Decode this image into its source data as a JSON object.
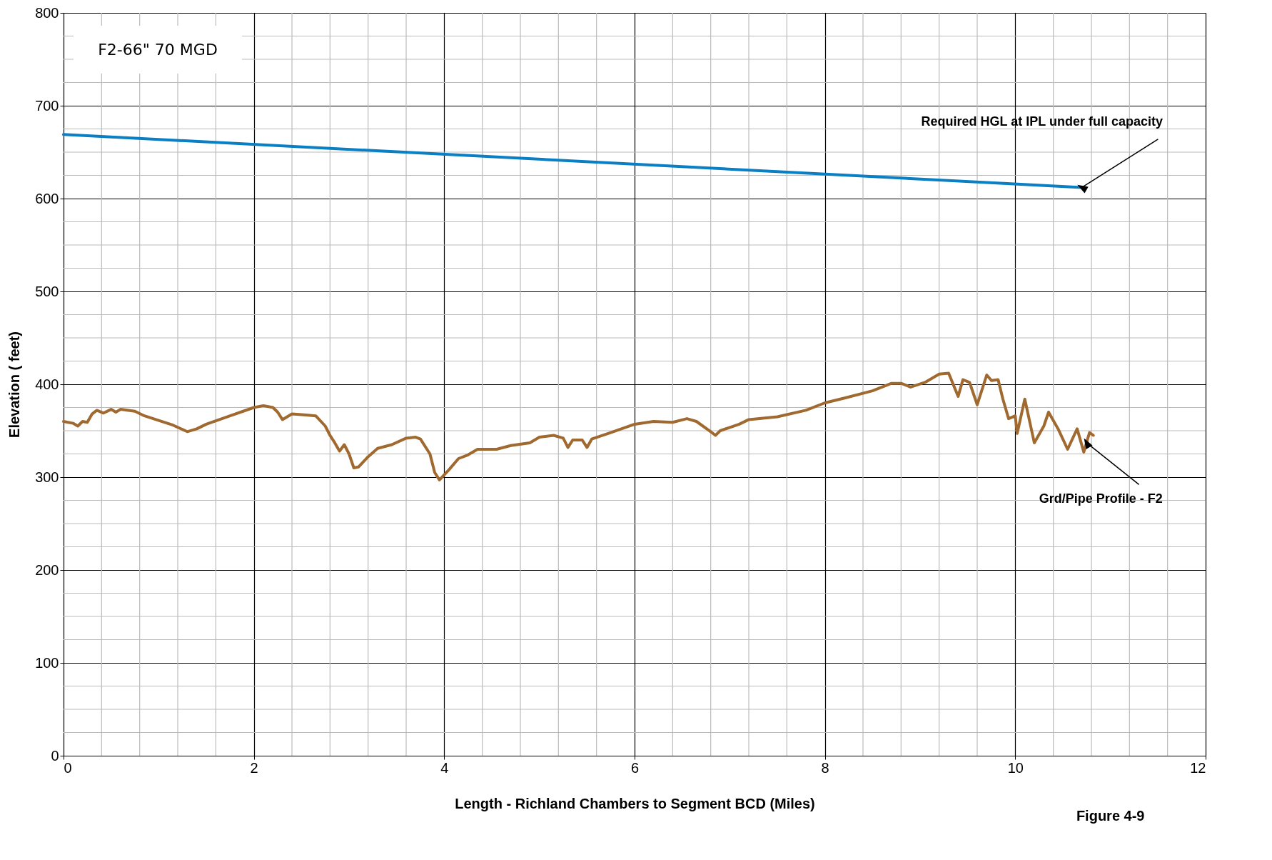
{
  "chart_data": {
    "type": "line",
    "xlabel": "Length - Richland Chambers to Segment BCD (Miles)",
    "ylabel": "Elevation ( feet)",
    "xlim": [
      0,
      12
    ],
    "xticks": [
      0,
      2,
      4,
      6,
      8,
      10,
      12
    ],
    "ylim": [
      0,
      800
    ],
    "yticks": [
      0,
      100,
      200,
      300,
      400,
      500,
      600,
      700,
      800
    ],
    "grid": true,
    "line_style": "solid",
    "series": [
      {
        "color": "#0a7fc4",
        "x": [
          0,
          10.7
        ],
        "values": [
          669,
          612
        ]
      },
      {
        "color": "#a0692f",
        "x": [
          0,
          0.1,
          0.15,
          0.2,
          0.25,
          0.3,
          0.35,
          0.42,
          0.5,
          0.55,
          0.6,
          0.75,
          0.85,
          1.0,
          1.15,
          1.3,
          1.4,
          1.5,
          1.75,
          2.0,
          2.1,
          2.2,
          2.25,
          2.3,
          2.4,
          2.55,
          2.65,
          2.75,
          2.8,
          2.85,
          2.9,
          2.95,
          3.0,
          3.05,
          3.1,
          3.2,
          3.3,
          3.45,
          3.6,
          3.7,
          3.75,
          3.85,
          3.9,
          3.95,
          4.05,
          4.15,
          4.25,
          4.35,
          4.55,
          4.7,
          4.9,
          5.0,
          5.15,
          5.25,
          5.3,
          5.35,
          5.45,
          5.5,
          5.55,
          5.75,
          6.0,
          6.2,
          6.4,
          6.55,
          6.65,
          6.8,
          6.85,
          6.9,
          7.1,
          7.2,
          7.5,
          7.8,
          8.0,
          8.2,
          8.5,
          8.7,
          8.8,
          8.9,
          9.05,
          9.2,
          9.3,
          9.4,
          9.45,
          9.52,
          9.6,
          9.7,
          9.75,
          9.82,
          9.87,
          9.93,
          10.0,
          10.02,
          10.1,
          10.2,
          10.3,
          10.35,
          10.45,
          10.55,
          10.65,
          10.72,
          10.78,
          10.82
        ],
        "values": [
          360,
          358,
          355,
          360,
          359,
          368,
          372,
          369,
          373,
          370,
          373,
          371,
          366,
          361,
          356,
          349,
          352,
          357,
          366,
          375,
          377,
          375,
          370,
          362,
          368,
          367,
          366,
          355,
          345,
          337,
          328,
          335,
          325,
          310,
          311,
          322,
          331,
          335,
          342,
          343,
          341,
          325,
          305,
          297,
          308,
          320,
          324,
          330,
          330,
          334,
          337,
          343,
          345,
          342,
          332,
          340,
          340,
          332,
          341,
          348,
          357,
          360,
          359,
          363,
          360,
          349,
          345,
          350,
          357,
          362,
          365,
          372,
          380,
          385,
          393,
          401,
          401,
          397,
          402,
          411,
          412,
          387,
          405,
          402,
          378,
          410,
          404,
          405,
          384,
          363,
          366,
          347,
          384,
          337,
          355,
          370,
          352,
          330,
          352,
          327,
          348,
          345
        ]
      }
    ],
    "annotations": [
      {
        "text": "Required HGL at IPL under full capacity",
        "x": 10.7,
        "y": 612
      },
      {
        "text": "Grd/Pipe Profile - F2",
        "x": 10.75,
        "y": 337
      },
      "F2-66\" 70 MGD",
      "Figure 4-9"
    ]
  }
}
